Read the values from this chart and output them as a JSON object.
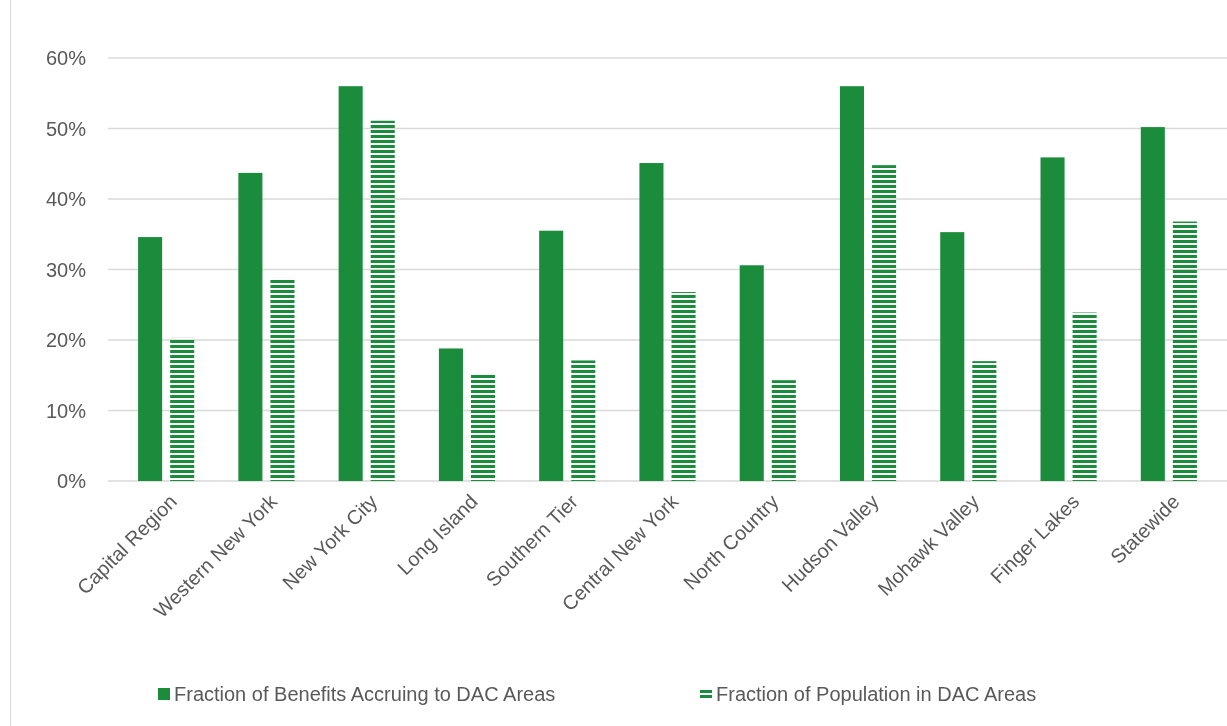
{
  "chart_data": {
    "type": "bar",
    "categories": [
      "Capital Region",
      "Western New York",
      "New York City",
      "Long Island",
      "Southern Tier",
      "Central New York",
      "North Country",
      "Hudson Valley",
      "Mohawk Valley",
      "Finger Lakes",
      "Statewide"
    ],
    "series": [
      {
        "name": "Fraction of Benefits Accruing to DAC Areas",
        "color": "#1a8c3c",
        "values": [
          34.6,
          43.7,
          56.0,
          18.8,
          35.5,
          45.1,
          30.6,
          56.0,
          35.3,
          45.9,
          50.2
        ]
      },
      {
        "name": "Fraction of Population in DAC Areas",
        "color": "#1a8c3c",
        "values": [
          20.3,
          28.8,
          51.1,
          15.3,
          17.1,
          26.8,
          14.3,
          44.8,
          17.0,
          23.9,
          36.8
        ]
      }
    ],
    "ylim": [
      0,
      60
    ],
    "yticks": [
      {
        "value": 0,
        "label": "0%"
      },
      {
        "value": 10,
        "label": "10%"
      },
      {
        "value": 20,
        "label": "20%"
      },
      {
        "value": 30,
        "label": "30%"
      },
      {
        "value": 40,
        "label": "40%"
      },
      {
        "value": 50,
        "label": "50%"
      },
      {
        "value": 60,
        "label": "60%"
      }
    ],
    "grid": "y",
    "legend": "bottom"
  }
}
